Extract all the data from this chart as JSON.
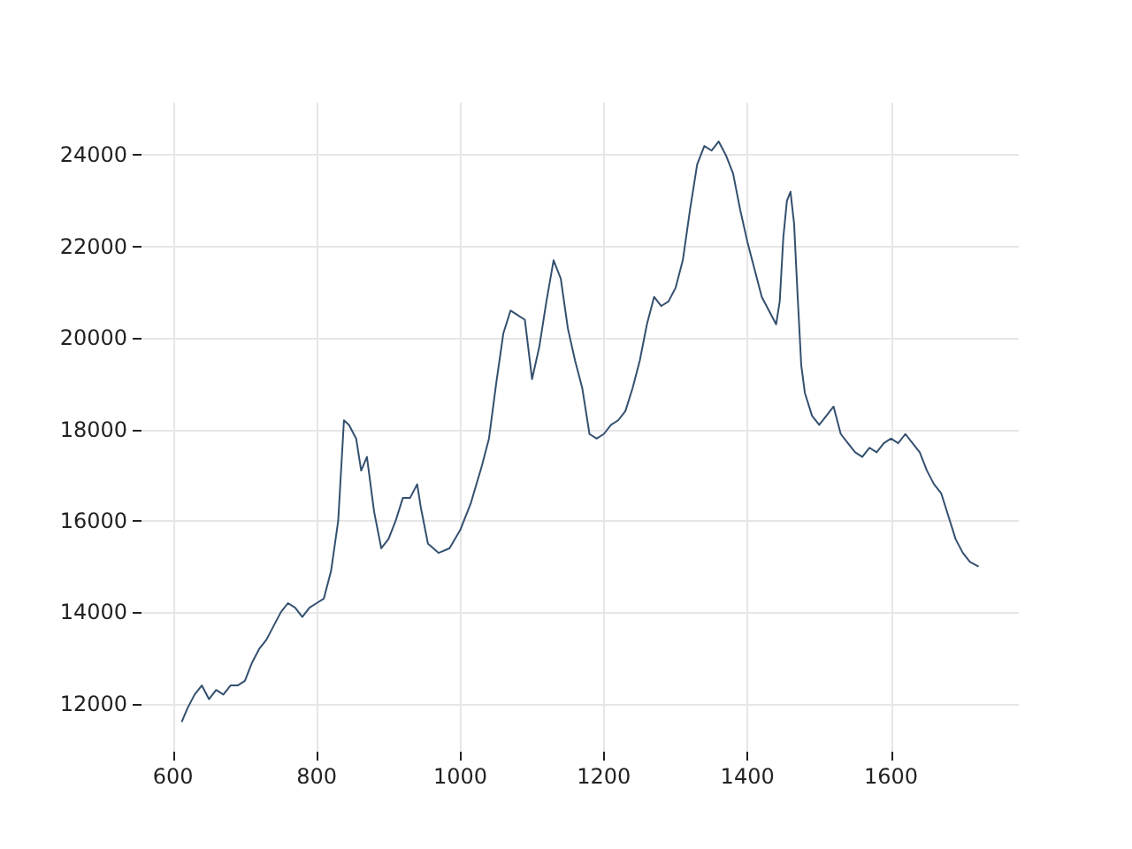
{
  "chart_data": {
    "type": "line",
    "xlim": [
      556,
      1778
    ],
    "ylim": [
      10950,
      25150
    ],
    "xticks": [
      600,
      800,
      1000,
      1200,
      1400,
      1600
    ],
    "yticks": [
      12000,
      14000,
      16000,
      18000,
      20000,
      22000,
      24000
    ],
    "grid": true,
    "series": [
      {
        "color": "#34506f",
        "x": [
          612,
          620,
          630,
          640,
          650,
          660,
          670,
          680,
          690,
          700,
          710,
          720,
          730,
          740,
          750,
          760,
          770,
          780,
          790,
          800,
          810,
          820,
          830,
          838,
          845,
          855,
          862,
          870,
          880,
          890,
          900,
          910,
          920,
          930,
          940,
          945,
          955,
          970,
          985,
          1000,
          1015,
          1030,
          1040,
          1050,
          1060,
          1070,
          1080,
          1090,
          1100,
          1110,
          1120,
          1130,
          1140,
          1150,
          1160,
          1170,
          1180,
          1190,
          1200,
          1210,
          1220,
          1230,
          1240,
          1250,
          1260,
          1270,
          1280,
          1290,
          1300,
          1310,
          1320,
          1330,
          1340,
          1350,
          1360,
          1370,
          1380,
          1390,
          1400,
          1410,
          1420,
          1430,
          1440,
          1445,
          1450,
          1455,
          1460,
          1465,
          1470,
          1475,
          1480,
          1490,
          1500,
          1510,
          1520,
          1530,
          1540,
          1550,
          1560,
          1570,
          1580,
          1590,
          1600,
          1610,
          1620,
          1630,
          1640,
          1650,
          1660,
          1670,
          1680,
          1690,
          1700,
          1710,
          1722
        ],
        "values": [
          11600,
          11900,
          12200,
          12400,
          12100,
          12300,
          12200,
          12400,
          12400,
          12500,
          12900,
          13200,
          13400,
          13700,
          14000,
          14200,
          14100,
          13900,
          14100,
          14200,
          14300,
          14900,
          16000,
          18200,
          18100,
          17800,
          17100,
          17400,
          16200,
          15400,
          15600,
          16000,
          16500,
          16500,
          16800,
          16300,
          15500,
          15300,
          15400,
          15800,
          16400,
          17200,
          17800,
          19000,
          20100,
          20600,
          20500,
          20400,
          19100,
          19800,
          20800,
          21700,
          21300,
          20200,
          19500,
          18900,
          17900,
          17800,
          17900,
          18100,
          18200,
          18400,
          18900,
          19500,
          20300,
          20900,
          20700,
          20800,
          21100,
          21700,
          22800,
          23800,
          24200,
          24100,
          24300,
          24000,
          23600,
          22800,
          22100,
          21500,
          20900,
          20600,
          20300,
          20800,
          22200,
          23000,
          23200,
          22500,
          20900,
          19400,
          18800,
          18300,
          18100,
          18300,
          18500,
          17900,
          17700,
          17500,
          17400,
          17600,
          17500,
          17700,
          17800,
          17700,
          17900,
          17700,
          17500,
          17100,
          16800,
          16600,
          16100,
          15600,
          15300,
          15100,
          15000
        ]
      }
    ]
  }
}
